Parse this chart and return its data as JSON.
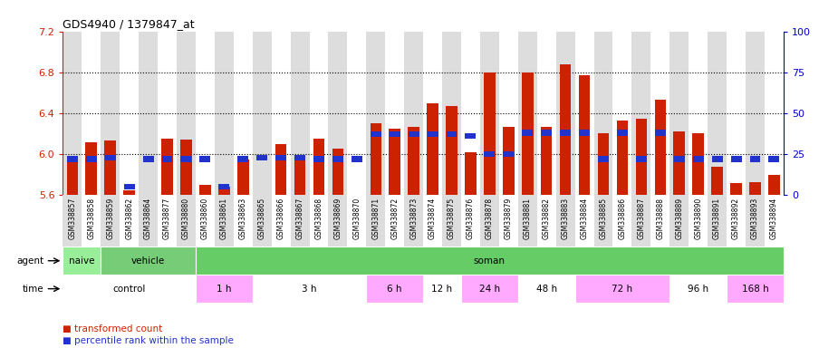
{
  "title": "GDS4940 / 1379847_at",
  "samples": [
    "GSM338857",
    "GSM338858",
    "GSM338859",
    "GSM338862",
    "GSM338864",
    "GSM338877",
    "GSM338880",
    "GSM338860",
    "GSM338861",
    "GSM338863",
    "GSM338865",
    "GSM338866",
    "GSM338867",
    "GSM338868",
    "GSM338869",
    "GSM338870",
    "GSM338871",
    "GSM338872",
    "GSM338873",
    "GSM338874",
    "GSM338875",
    "GSM338876",
    "GSM338878",
    "GSM338879",
    "GSM338881",
    "GSM338882",
    "GSM338883",
    "GSM338884",
    "GSM338885",
    "GSM338886",
    "GSM338887",
    "GSM338888",
    "GSM338889",
    "GSM338890",
    "GSM338891",
    "GSM338892",
    "GSM338893",
    "GSM338894"
  ],
  "transformed_count": [
    5.95,
    6.12,
    6.13,
    5.65,
    5.55,
    6.15,
    6.14,
    5.7,
    5.68,
    5.95,
    5.5,
    6.1,
    5.95,
    6.15,
    6.05,
    5.58,
    6.3,
    6.25,
    6.27,
    6.5,
    6.47,
    6.02,
    6.8,
    6.27,
    6.8,
    6.27,
    6.88,
    6.77,
    6.2,
    6.33,
    6.35,
    6.53,
    6.22,
    6.2,
    5.88,
    5.72,
    5.73,
    5.8
  ],
  "percentile_rank": [
    22,
    22,
    23,
    5,
    22,
    22,
    22,
    22,
    5,
    22,
    23,
    23,
    23,
    22,
    22,
    22,
    37,
    37,
    37,
    37,
    37,
    36,
    25,
    25,
    38,
    38,
    38,
    38,
    22,
    38,
    22,
    38,
    22,
    22,
    22,
    22,
    22,
    22
  ],
  "ylim_left": [
    5.6,
    7.2
  ],
  "ylim_right": [
    0,
    100
  ],
  "yticks_left": [
    5.6,
    6.0,
    6.4,
    6.8,
    7.2
  ],
  "yticks_right": [
    0,
    25,
    50,
    75,
    100
  ],
  "bar_color": "#cc2200",
  "percentile_color": "#2233cc",
  "agent_groups": [
    {
      "label": "naive",
      "start": 0,
      "end": 2,
      "color": "#99ee99"
    },
    {
      "label": "vehicle",
      "start": 2,
      "end": 7,
      "color": "#77cc77"
    },
    {
      "label": "soman",
      "start": 7,
      "end": 38,
      "color": "#66cc66"
    }
  ],
  "time_groups": [
    {
      "label": "control",
      "start": 0,
      "end": 7,
      "color": "#ffffff"
    },
    {
      "label": "1 h",
      "start": 7,
      "end": 10,
      "color": "#ffaaff"
    },
    {
      "label": "3 h",
      "start": 10,
      "end": 16,
      "color": "#ffffff"
    },
    {
      "label": "6 h",
      "start": 16,
      "end": 19,
      "color": "#ffaaff"
    },
    {
      "label": "12 h",
      "start": 19,
      "end": 21,
      "color": "#ffffff"
    },
    {
      "label": "24 h",
      "start": 21,
      "end": 24,
      "color": "#ffaaff"
    },
    {
      "label": "48 h",
      "start": 24,
      "end": 27,
      "color": "#ffffff"
    },
    {
      "label": "72 h",
      "start": 27,
      "end": 32,
      "color": "#ffaaff"
    },
    {
      "label": "96 h",
      "start": 32,
      "end": 35,
      "color": "#ffffff"
    },
    {
      "label": "168 h",
      "start": 35,
      "end": 38,
      "color": "#ffaaff"
    }
  ],
  "col_bg_odd": "#dddddd",
  "col_bg_even": "#ffffff",
  "tick_area_bg": "#cccccc",
  "gridline_color": "#000000",
  "gridline_style": "dotted",
  "gridline_lw": 0.8,
  "gridlines_at": [
    6.0,
    6.4,
    6.8
  ]
}
